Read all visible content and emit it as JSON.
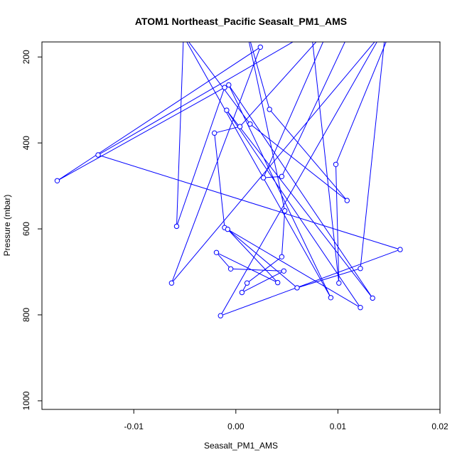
{
  "chart_data": {
    "type": "line",
    "title": "ATOM1 Northeast_Pacific Seasalt_PM1_AMS",
    "xlabel": "Seasalt_PM1_AMS",
    "ylabel": "Pressure (mbar)",
    "xlim": [
      -0.019,
      0.02
    ],
    "ylim": [
      1020,
      165
    ],
    "y_reversed": true,
    "x_ticks": [
      -0.01,
      0.0,
      0.01,
      0.02
    ],
    "x_tick_labels": [
      "-0.01",
      "0.00",
      "0.01",
      "0.02"
    ],
    "y_ticks": [
      200,
      400,
      600,
      800,
      1000
    ],
    "y_tick_labels": [
      "200",
      "400",
      "600",
      "800",
      "1000"
    ],
    "grid": false,
    "legend": "none",
    "series": [
      {
        "color": "#0000ff",
        "marker": "open-circle",
        "x_extra_start": -0.0051,
        "y_extra_start": 130,
        "points": [
          [
            -0.0058,
            594
          ],
          [
            -0.0011,
            271
          ],
          [
            -0.0175,
            488
          ],
          [
            0.0024,
            177
          ],
          [
            -0.0063,
            726
          ],
          [
            0.0143,
            145
          ],
          [
            -0.0015,
            802
          ],
          [
            0.0161,
            648
          ],
          [
            -0.0135,
            428
          ],
          [
            0.0074,
            140
          ],
          [
            0.0101,
            726
          ],
          [
            0.0098,
            450
          ],
          [
            0.0155,
            120
          ],
          [
            0.0113,
            134
          ],
          [
            0.0045,
            478
          ],
          [
            0.0027,
            481
          ],
          [
            0.0092,
            130
          ],
          [
            0.0004,
            362
          ],
          [
            -0.0021,
            377
          ],
          [
            -0.0011,
            597
          ],
          [
            0.0122,
            783
          ],
          [
            -0.0009,
            324
          ],
          [
            0.0134,
            761
          ],
          [
            -0.0007,
            265
          ],
          [
            0.0093,
            760
          ],
          [
            -0.0054,
            140
          ],
          [
            0.0014,
            356
          ],
          [
            0.0109,
            534
          ],
          [
            0.0033,
            322
          ],
          [
            0.0009,
            120
          ],
          [
            0.0048,
            558
          ],
          [
            0.0045,
            665
          ],
          [
            0.0011,
            726
          ],
          [
            0.0006,
            748
          ],
          [
            0.0047,
            698
          ],
          [
            -0.0005,
            693
          ],
          [
            -0.0019,
            655
          ],
          [
            0.0041,
            725
          ],
          [
            -0.0008,
            601
          ],
          [
            0.006,
            737
          ],
          [
            0.0122,
            692
          ],
          [
            0.0147,
            130
          ]
        ],
        "label_x": "Seasalt_PM1_AMS",
        "label_y": "Pressure (mbar)"
      }
    ]
  }
}
